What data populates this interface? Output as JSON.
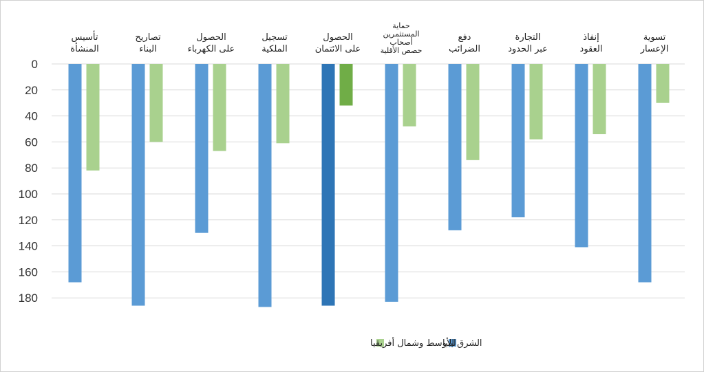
{
  "chart_data": {
    "type": "bar",
    "title": "",
    "xlabel": "",
    "ylabel": "",
    "y_axis_inverted": true,
    "ylim": [
      0,
      180
    ],
    "yticks": [
      "0",
      "20",
      "40",
      "60",
      "80",
      "100",
      "120",
      "140",
      "160",
      "180"
    ],
    "grid": true,
    "legend_position": "bottom",
    "categories": [
      [
        "تسوية",
        "الإعسار"
      ],
      [
        "إنفاذ",
        "العقود"
      ],
      [
        "التجارة",
        "عبر الحدود"
      ],
      [
        "دفع",
        "الضرائب"
      ],
      [
        "حماية",
        "المستثمرين",
        "أصحاب",
        "حصص الأقلية"
      ],
      [
        "الحصول",
        "على الائتمان"
      ],
      [
        "تسجيل",
        "الملكية"
      ],
      [
        "الحصول",
        "على الكهرباء"
      ],
      [
        "تصاريح",
        "البناء"
      ],
      [
        "تأسيس",
        "المنشأة"
      ]
    ],
    "series": [
      {
        "name": "ليبيا",
        "color": "#5b9bd5",
        "values": [
          168,
          141,
          118,
          128,
          183,
          186,
          187,
          130,
          186,
          168
        ]
      },
      {
        "name": "الشرق الأوسط وشمال أفريقيا",
        "color": "#a9d18e",
        "values": [
          30,
          54,
          58,
          74,
          48,
          32,
          61,
          67,
          60,
          82
        ]
      }
    ],
    "highlight_index": 5,
    "highlight_colors": [
      "#2e75b6",
      "#70ad47"
    ]
  }
}
